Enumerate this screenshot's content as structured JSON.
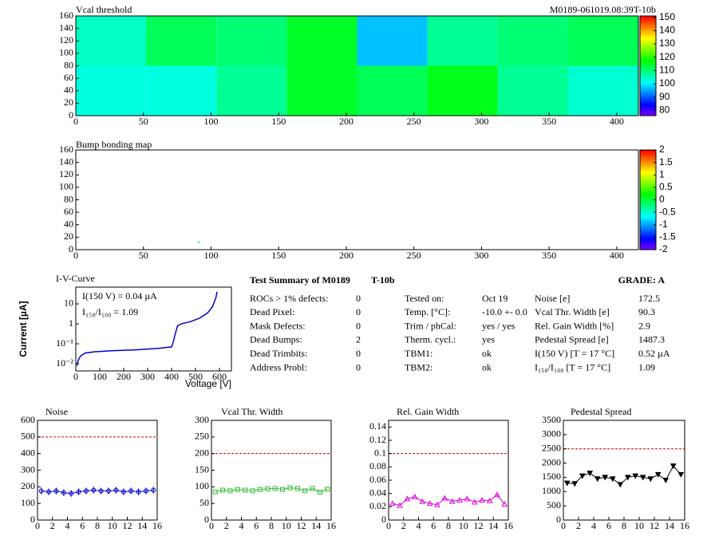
{
  "chart_data": [
    {
      "type": "heatmap",
      "title": "Vcal threshold",
      "subtitle": "M0189-061019.08:39T-10b",
      "xlim": [
        0,
        416
      ],
      "ylim": [
        0,
        160
      ],
      "xticks": [
        0,
        50,
        100,
        150,
        200,
        250,
        300,
        350,
        400
      ],
      "yticks": [
        0,
        20,
        40,
        60,
        80,
        100,
        120,
        140,
        160
      ],
      "xbins": [
        0,
        52,
        104,
        156,
        208,
        260,
        312,
        364,
        416
      ],
      "ybins": [
        0,
        80,
        160
      ],
      "values": [
        [
          103,
          103,
          108,
          115,
          112,
          116,
          108,
          104
        ],
        [
          105,
          112,
          110,
          115,
          97,
          108,
          110,
          112
        ]
      ],
      "zlim": [
        76,
        151
      ],
      "zticks": [
        80,
        90,
        100,
        110,
        120,
        130,
        140,
        150
      ]
    },
    {
      "type": "heatmap",
      "title": "Bump bonding map",
      "xlim": [
        0,
        416
      ],
      "ylim": [
        0,
        160
      ],
      "xticks": [
        0,
        50,
        100,
        150,
        200,
        250,
        300,
        350,
        400
      ],
      "yticks": [
        0,
        20,
        40,
        60,
        80,
        100,
        120,
        140,
        160
      ],
      "points": {
        "x": [
          91
        ],
        "y": [
          12
        ],
        "values": [
          0
        ]
      },
      "zlim": [
        -2,
        2
      ],
      "zticks": [
        -2,
        -1.5,
        -1,
        -0.5,
        0,
        0.5,
        1,
        1.5,
        2
      ]
    },
    {
      "type": "line",
      "title": "I-V-Curve",
      "xlabel": "Voltage [V]",
      "ylabel": "Current [µA]",
      "annotations": [
        "I(150 V) = 0.04 µA",
        "I₁₅₀/I₁₀₀ =  1.09"
      ],
      "xlim": [
        0,
        650
      ],
      "ylim": [
        0.0044,
        69
      ],
      "ylog": true,
      "xticks": [
        0,
        100,
        200,
        300,
        400,
        500,
        600
      ],
      "yticks": [
        {
          "value": 0.01,
          "label": "10⁻²"
        },
        {
          "value": 0.1,
          "label": "10⁻¹"
        },
        1,
        10
      ],
      "x": [
        5,
        10,
        20,
        40,
        80,
        150,
        250,
        350,
        400,
        405,
        415,
        425,
        440,
        480,
        520,
        550,
        570,
        585,
        590
      ],
      "values": [
        0.008,
        0.015,
        0.025,
        0.035,
        0.04,
        0.045,
        0.05,
        0.06,
        0.07,
        0.1,
        0.3,
        0.8,
        1.0,
        1.3,
        2,
        3.5,
        7,
        20,
        40
      ],
      "color": "#0000cc"
    },
    {
      "type": "line",
      "title": "Noise",
      "xlim": [
        0,
        16
      ],
      "ylim": [
        0,
        600
      ],
      "xticks": [
        0,
        2,
        4,
        6,
        8,
        10,
        12,
        14,
        16
      ],
      "yticks": [
        0,
        100,
        200,
        300,
        400,
        500,
        600
      ],
      "hline": 500,
      "x": [
        0.5,
        1.5,
        2.5,
        3.5,
        4.5,
        5.5,
        6.5,
        7.5,
        8.5,
        9.5,
        10.5,
        11.5,
        12.5,
        13.5,
        14.5,
        15.5
      ],
      "values": [
        175,
        170,
        175,
        165,
        160,
        170,
        175,
        180,
        175,
        175,
        180,
        170,
        175,
        170,
        175,
        180
      ],
      "errors": [
        20,
        20,
        20,
        20,
        20,
        20,
        20,
        20,
        20,
        20,
        20,
        20,
        20,
        20,
        20,
        20
      ],
      "color": "#0000cc",
      "marker": "circle"
    },
    {
      "type": "line",
      "title": "Vcal Thr. Width",
      "xlim": [
        0,
        16
      ],
      "ylim": [
        0,
        300
      ],
      "xticks": [
        0,
        2,
        4,
        6,
        8,
        10,
        12,
        14,
        16
      ],
      "yticks": [
        0,
        50,
        100,
        150,
        200,
        250,
        300
      ],
      "hline": 200,
      "x": [
        0.5,
        1.5,
        2.5,
        3.5,
        4.5,
        5.5,
        6.5,
        7.5,
        8.5,
        9.5,
        10.5,
        11.5,
        12.5,
        13.5,
        14.5,
        15.5
      ],
      "values": [
        85,
        90,
        88,
        92,
        90,
        88,
        92,
        94,
        95,
        92,
        97,
        95,
        88,
        95,
        84,
        93
      ],
      "color": "#33bb33",
      "marker": "square"
    },
    {
      "type": "line",
      "title": "Rel. Gain Width",
      "xlim": [
        0,
        16
      ],
      "ylim": [
        0,
        0.15
      ],
      "xticks": [
        0,
        2,
        4,
        6,
        8,
        10,
        12,
        14,
        16
      ],
      "yticks": [
        0,
        0.02,
        0.04,
        0.06,
        0.08,
        0.1,
        0.12,
        0.14
      ],
      "hline": 0.1,
      "x": [
        0.5,
        1.5,
        2.5,
        3.5,
        4.5,
        5.5,
        6.5,
        7.5,
        8.5,
        9.5,
        10.5,
        11.5,
        12.5,
        13.5,
        14.5,
        15.5
      ],
      "values": [
        0.025,
        0.022,
        0.032,
        0.035,
        0.028,
        0.025,
        0.023,
        0.033,
        0.028,
        0.03,
        0.032,
        0.027,
        0.03,
        0.029,
        0.038,
        0.024
      ],
      "color": "#dd00dd",
      "marker": "triangle"
    },
    {
      "type": "line",
      "title": "Pedestal Spread",
      "xlim": [
        0,
        16
      ],
      "ylim": [
        0,
        3500
      ],
      "xticks": [
        0,
        2,
        4,
        6,
        8,
        10,
        12,
        14,
        16
      ],
      "yticks": [
        0,
        500,
        1000,
        1500,
        2000,
        2500,
        3000,
        3500
      ],
      "hline": 2500,
      "x": [
        0.5,
        1.5,
        2.5,
        3.5,
        4.5,
        5.5,
        6.5,
        7.5,
        8.5,
        9.5,
        10.5,
        11.5,
        12.5,
        13.5,
        14.5,
        15.5
      ],
      "values": [
        1300,
        1280,
        1550,
        1650,
        1450,
        1500,
        1450,
        1250,
        1500,
        1550,
        1500,
        1450,
        1600,
        1400,
        1900,
        1600
      ],
      "color": "#000000",
      "marker": "triangle-down"
    }
  ],
  "summary": {
    "title": "Test Summary of M0189",
    "tag": "T-10b",
    "grade": "GRADE:  A",
    "left": [
      [
        "ROCs > 1% defects:",
        "0"
      ],
      [
        "Dead Pixel:",
        "0"
      ],
      [
        "Mask Defects:",
        "0"
      ],
      [
        "Dead Bumps:",
        "2"
      ],
      [
        "Dead Trimbits:",
        "0"
      ],
      [
        "Address Probl:",
        "0"
      ]
    ],
    "middle": [
      [
        "Tested on:",
        "Oct 19"
      ],
      [
        "Temp. [°C]:",
        "-10.0 +- 0.0"
      ],
      [
        "Trim / phCal:",
        "yes / yes"
      ],
      [
        "Therm. cycl.:",
        "yes"
      ],
      [
        "TBM1:",
        "ok"
      ],
      [
        "TBM2:",
        "ok"
      ]
    ],
    "right": [
      [
        "Noise [e]",
        "172.5"
      ],
      [
        "Vcal Thr. Width [e]",
        "90.3"
      ],
      [
        "Rel. Gain Width [%]",
        "2.9"
      ],
      [
        "Pedestal Spread [e]",
        "1487.3"
      ],
      [
        "I(150 V) [T = 17 °C]",
        "0.52 µA"
      ],
      [
        "I₁₅₀/I₁₀₀  [T = 17 °C]",
        "1.09"
      ]
    ]
  }
}
